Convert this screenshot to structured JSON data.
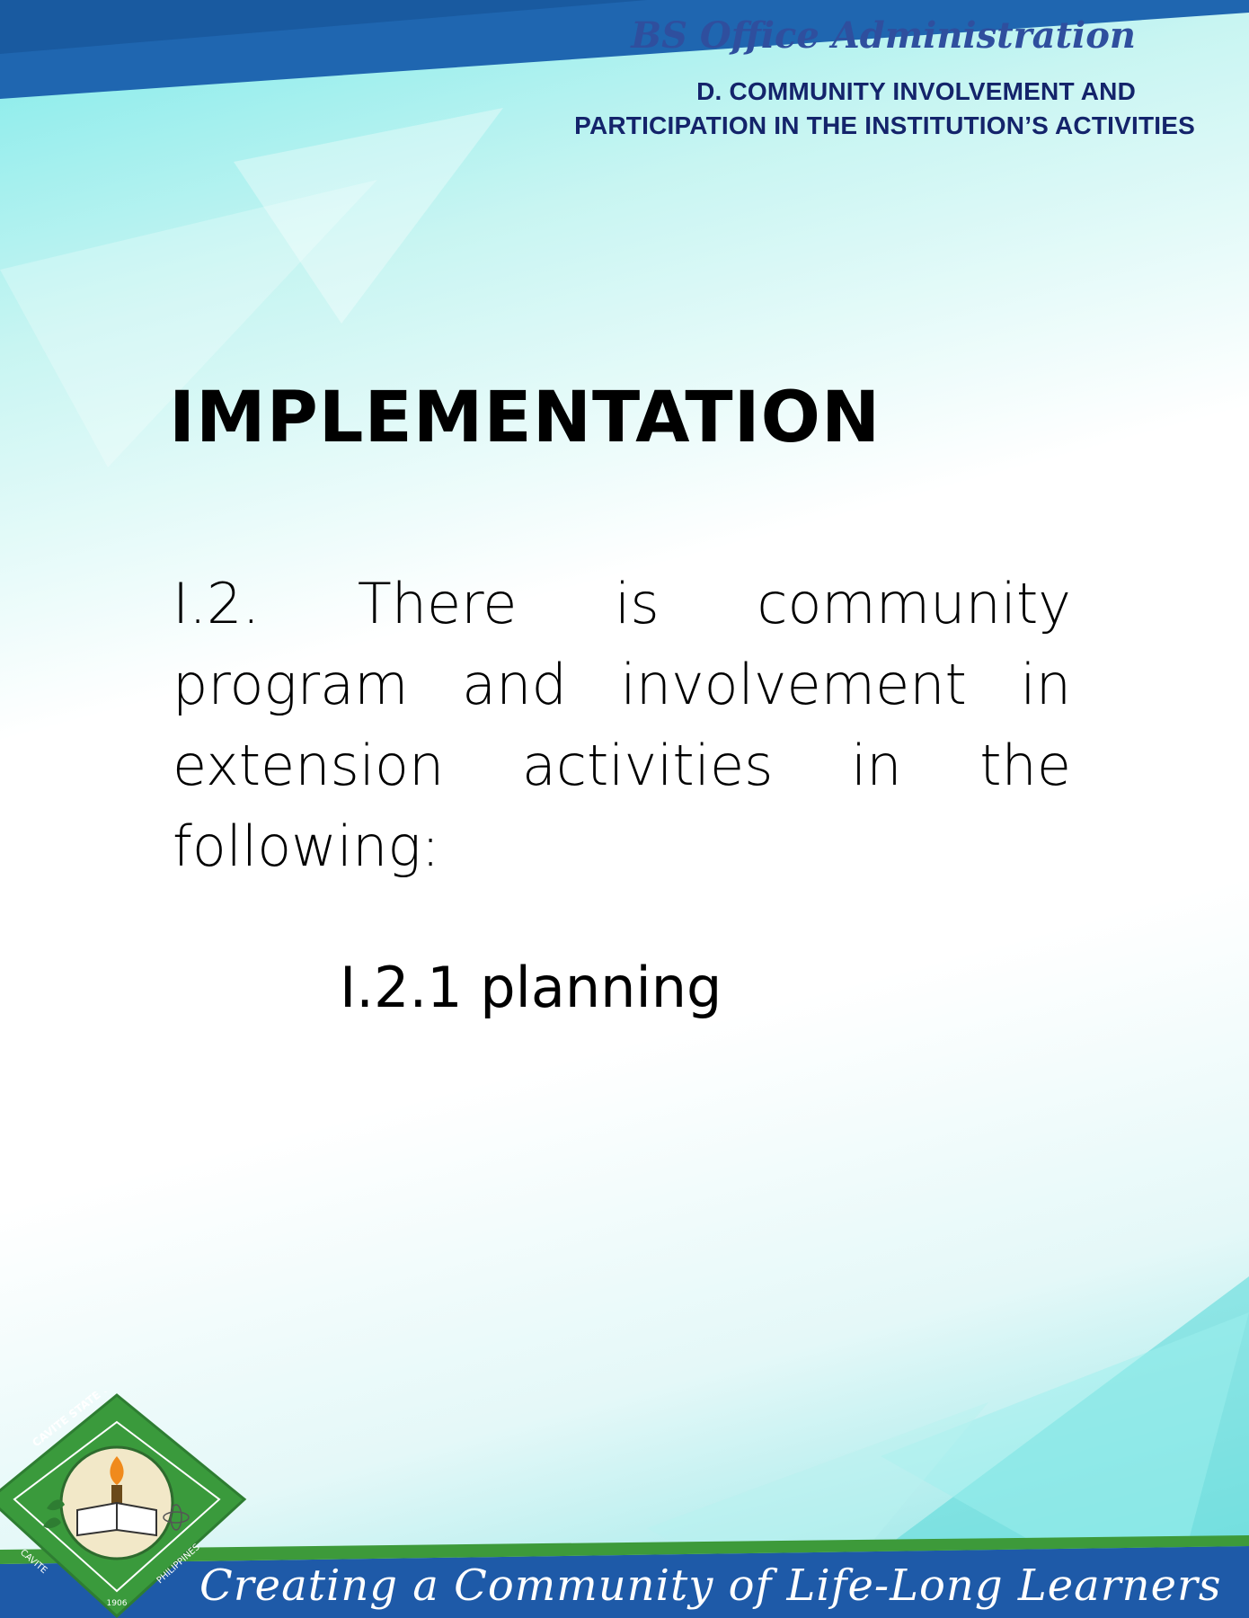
{
  "header": {
    "program": "BS Office Administration",
    "section_line1": "D. COMMUNITY INVOLVEMENT AND",
    "section_line2": "PARTICIPATION IN THE INSTITUTION’S ACTIVITIES"
  },
  "main": {
    "title": "IMPLEMENTATION",
    "paragraph": "I.2. There is community program and involvement in extension activities in the following:",
    "sub_item": "I.2.1 planning"
  },
  "footer": {
    "tagline": "Creating a Community of Life-Long Learners",
    "seal": {
      "top_text": "CAVITE STATE UNIVERSITY",
      "bottom_left": "CAVITE",
      "bottom_right": "PHILIPPINES",
      "year": "1906"
    }
  },
  "colors": {
    "header_blue": "#2f4f9e",
    "header_navy": "#14246b",
    "band_blue": "#1e5aa8",
    "band_green": "#3d9a3a",
    "seal_green": "#3a9a3c"
  }
}
